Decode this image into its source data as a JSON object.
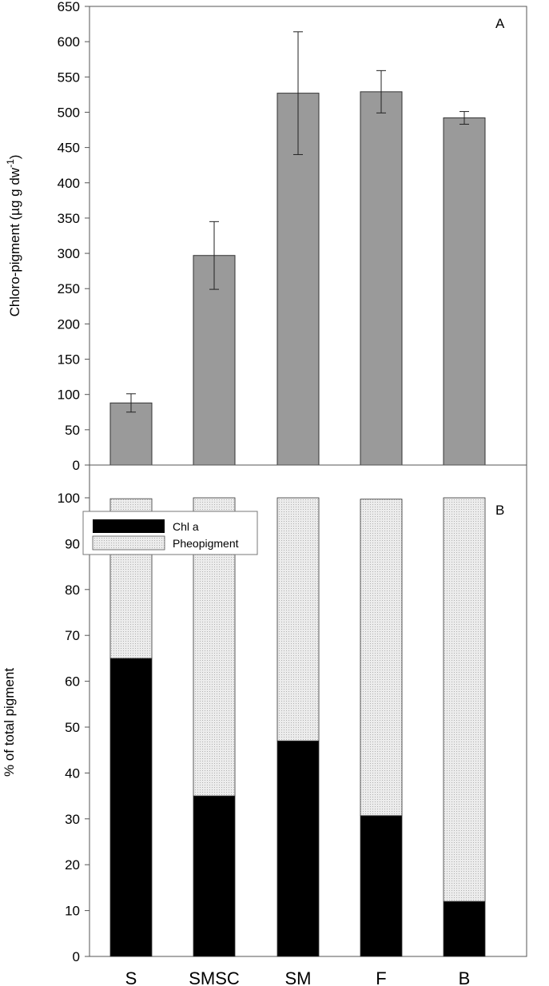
{
  "chart_data": [
    {
      "panel": "A",
      "type": "bar",
      "categories": [
        "S",
        "SMSC",
        "SM",
        "F",
        "B"
      ],
      "values": [
        88,
        297,
        527,
        529,
        492
      ],
      "errors": [
        13,
        48,
        87,
        30,
        9
      ],
      "ylabel": "Chloro-pigment (µg g dw",
      "ylabel_sup": "-1",
      "ylabel_tail": ")",
      "ylim": [
        0,
        650
      ],
      "yticks": [
        0,
        50,
        100,
        150,
        200,
        250,
        300,
        350,
        400,
        450,
        500,
        550,
        600,
        650
      ],
      "colors": {
        "bar": "#9a9a9a"
      }
    },
    {
      "panel": "B",
      "type": "bar",
      "stacked": true,
      "categories": [
        "S",
        "SMSC",
        "SM",
        "F",
        "B"
      ],
      "series": [
        {
          "name": "Chl a",
          "values": [
            65,
            35,
            47,
            30.7,
            12
          ]
        },
        {
          "name": "Pheopigment",
          "values": [
            34.8,
            65,
            53,
            69,
            88
          ]
        }
      ],
      "ylabel": "% of total pigment",
      "ylim": [
        0,
        100
      ],
      "yticks": [
        0,
        10,
        20,
        30,
        40,
        50,
        60,
        70,
        80,
        90,
        100
      ],
      "legend": "top-left",
      "colors": {
        "Chl a": "#000000",
        "Pheopigment": "#e6e6e6"
      }
    }
  ]
}
